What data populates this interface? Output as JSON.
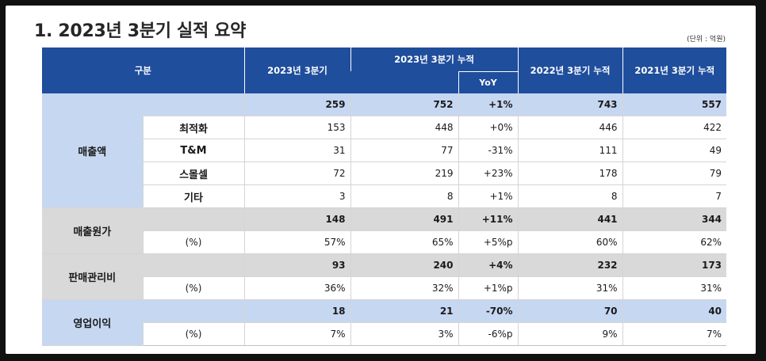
{
  "title": "1.  2023년 3분기 실적 요약",
  "unit": "(단위 : 억원)",
  "header": {
    "category": "구분",
    "col1": "2023년 3분기",
    "col2": "2023년 3분기 누적",
    "yoy": "YoY",
    "col4": "2022년 3분기 누적",
    "col5": "2021년 3분기 누적"
  },
  "sections": {
    "revenue": {
      "label": "매출액",
      "total": [
        "259",
        "752",
        "+1%",
        "743",
        "557"
      ],
      "rows": [
        {
          "label": "최적화",
          "values": [
            "153",
            "448",
            "+0%",
            "446",
            "422"
          ]
        },
        {
          "label": "T&M",
          "values": [
            "31",
            "77",
            "-31%",
            "111",
            "49"
          ]
        },
        {
          "label": "스몰셀",
          "values": [
            "72",
            "219",
            "+23%",
            "178",
            "79"
          ]
        },
        {
          "label": "기타",
          "values": [
            "3",
            "8",
            "+1%",
            "8",
            "7"
          ]
        }
      ]
    },
    "cogs": {
      "label": "매출원가",
      "total": [
        "148",
        "491",
        "+11%",
        "441",
        "344"
      ],
      "pct_label": "(%)",
      "pct": [
        "57%",
        "65%",
        "+5%p",
        "60%",
        "62%"
      ]
    },
    "sga": {
      "label": "판매관리비",
      "total": [
        "93",
        "240",
        "+4%",
        "232",
        "173"
      ],
      "pct_label": "(%)",
      "pct": [
        "36%",
        "32%",
        "+1%p",
        "31%",
        "31%"
      ]
    },
    "op": {
      "label": "영업이익",
      "total": [
        "18",
        "21",
        "-70%",
        "70",
        "40"
      ],
      "pct_label": "(%)",
      "pct": [
        "7%",
        "3%",
        "-6%p",
        "9%",
        "7%"
      ]
    }
  },
  "colors": {
    "header_bg": "#1f4e9c",
    "light_blue": "#c6d7f2",
    "gray": "#d9d9d9"
  }
}
